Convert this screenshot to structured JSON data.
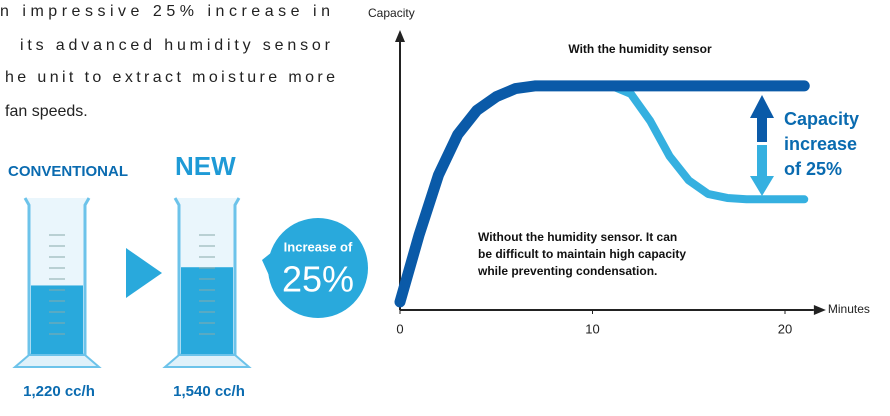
{
  "intro_text": {
    "lines": [
      "n impressive 25% increase in",
      "its advanced humidity sensor",
      "he unit to extract moisture more",
      "fan speeds."
    ]
  },
  "comparison": {
    "items": [
      {
        "label": "CONVENTIONAL",
        "value": 1220,
        "value_label": "1,220 cc/h"
      },
      {
        "label": "NEW",
        "value": 1540,
        "value_label": "1,540 cc/h"
      }
    ],
    "badge": {
      "lines": [
        "Increase of",
        "25%"
      ]
    }
  },
  "chart_data": {
    "type": "line",
    "y_label": "Capacity",
    "x_label": "Minutes",
    "x": [
      0,
      1,
      2,
      3,
      4,
      5,
      6,
      7,
      10,
      11,
      12,
      13,
      14,
      15,
      16,
      17,
      18,
      21
    ],
    "xlim": [
      0,
      21.5
    ],
    "xticks": [
      0,
      10,
      20
    ],
    "ylim": [
      0,
      100
    ],
    "series": [
      {
        "color": "#35b0e0",
        "values": [
          3,
          28,
          50,
          65,
          74,
          79,
          82,
          83,
          83,
          83,
          80,
          70,
          57,
          48,
          43,
          41.5,
          41,
          41
        ]
      },
      {
        "color": "#0a5aa8",
        "values": [
          3,
          28,
          50,
          65,
          74,
          79,
          82,
          83,
          83,
          83,
          83,
          83,
          83,
          83,
          83,
          83,
          83,
          83
        ]
      }
    ],
    "annotations": {
      "with_sensor": "With the humidity sensor",
      "increase": [
        "Capacity",
        "increase",
        "of 25%"
      ],
      "without_sensor": [
        "Without the humidity sensor. It can",
        "be difficult to maintain high capacity",
        "while preventing condensation."
      ]
    }
  }
}
